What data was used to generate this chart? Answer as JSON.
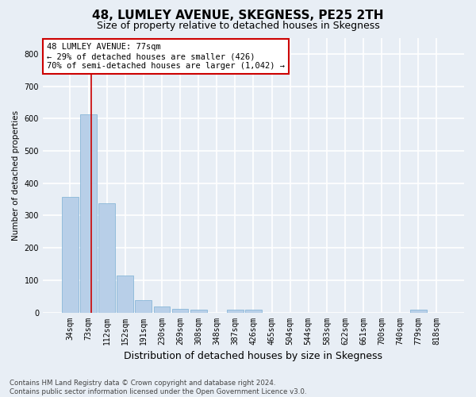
{
  "title": "48, LUMLEY AVENUE, SKEGNESS, PE25 2TH",
  "subtitle": "Size of property relative to detached houses in Skegness",
  "xlabel": "Distribution of detached houses by size in Skegness",
  "ylabel": "Number of detached properties",
  "categories": [
    "34sqm",
    "73sqm",
    "112sqm",
    "152sqm",
    "191sqm",
    "230sqm",
    "269sqm",
    "308sqm",
    "348sqm",
    "387sqm",
    "426sqm",
    "465sqm",
    "504sqm",
    "544sqm",
    "583sqm",
    "622sqm",
    "661sqm",
    "700sqm",
    "740sqm",
    "779sqm",
    "818sqm"
  ],
  "values": [
    358,
    613,
    338,
    115,
    38,
    18,
    12,
    8,
    0,
    8,
    8,
    0,
    0,
    0,
    0,
    0,
    0,
    0,
    0,
    8,
    0
  ],
  "bar_color": "#b8cfe8",
  "bar_edge_color": "#7bafd4",
  "property_line_x": 1.15,
  "annotation_text": "48 LUMLEY AVENUE: 77sqm\n← 29% of detached houses are smaller (426)\n70% of semi-detached houses are larger (1,042) →",
  "annotation_box_color": "#ffffff",
  "annotation_box_edge_color": "#cc0000",
  "footnote": "Contains HM Land Registry data © Crown copyright and database right 2024.\nContains public sector information licensed under the Open Government Licence v3.0.",
  "ylim": [
    0,
    850
  ],
  "background_color": "#e8eef5",
  "plot_background": "#e8eef5",
  "grid_color": "#ffffff",
  "title_fontsize": 11,
  "subtitle_fontsize": 9,
  "figsize": [
    6.0,
    5.0
  ],
  "dpi": 100
}
